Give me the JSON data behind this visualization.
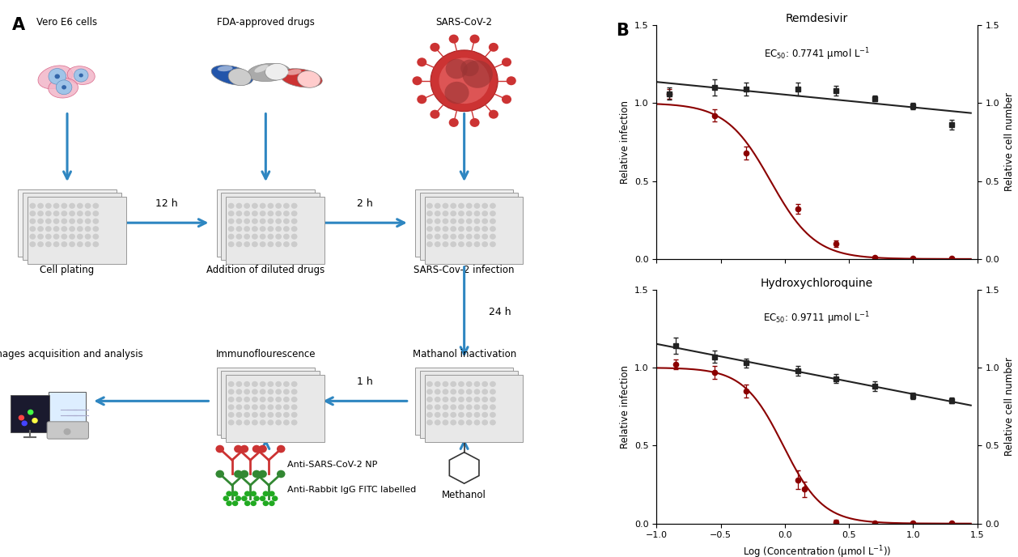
{
  "remdesivir": {
    "title": "Remdesivir",
    "ec50_text": "EC$_{50}$: 0.7741 μmol L$^{-1}$",
    "ec50_value": 0.7741,
    "infection_x": [
      -0.9,
      -0.55,
      -0.3,
      0.1,
      0.4,
      0.7,
      1.0,
      1.3
    ],
    "infection_y": [
      1.06,
      0.92,
      0.68,
      0.32,
      0.1,
      0.01,
      0.005,
      0.005
    ],
    "infection_err": [
      0.03,
      0.04,
      0.04,
      0.03,
      0.02,
      0.005,
      0.005,
      0.005
    ],
    "cell_x": [
      -0.9,
      -0.55,
      -0.3,
      0.1,
      0.4,
      0.7,
      1.0,
      1.3
    ],
    "cell_y": [
      1.06,
      1.1,
      1.09,
      1.09,
      1.08,
      1.03,
      0.98,
      0.86
    ],
    "cell_err": [
      0.04,
      0.05,
      0.04,
      0.04,
      0.03,
      0.02,
      0.02,
      0.03
    ],
    "hill": 2.5
  },
  "hydroxychloroquine": {
    "title": "Hydroxychloroquine",
    "ec50_text": "EC$_{50}$: 0.9711 μmol L$^{-1}$",
    "ec50_value": 0.9711,
    "infection_x": [
      -0.85,
      -0.55,
      -0.3,
      0.1,
      0.15,
      0.4,
      0.7,
      1.0,
      1.3
    ],
    "infection_y": [
      1.02,
      0.97,
      0.85,
      0.28,
      0.22,
      0.01,
      0.005,
      0.005,
      0.005
    ],
    "infection_err": [
      0.03,
      0.04,
      0.04,
      0.06,
      0.05,
      0.015,
      0.005,
      0.005,
      0.005
    ],
    "cell_x": [
      -0.85,
      -0.55,
      -0.3,
      0.1,
      0.4,
      0.7,
      1.0,
      1.3
    ],
    "cell_y": [
      1.14,
      1.07,
      1.03,
      0.98,
      0.93,
      0.88,
      0.82,
      0.79
    ],
    "cell_err": [
      0.05,
      0.04,
      0.03,
      0.03,
      0.03,
      0.03,
      0.02,
      0.02
    ],
    "hill": 2.8
  },
  "xlim": [
    -1.0,
    1.5
  ],
  "ylim": [
    0.0,
    1.5
  ],
  "xlabel": "Log (Concentration (μmol L$^{-1}$))",
  "ylabel_left": "Relative infection",
  "ylabel_right": "Relative cell number",
  "infection_color": "#8B0000",
  "cell_color": "#222222",
  "xticks": [
    -1.0,
    -0.5,
    0.0,
    0.5,
    1.0,
    1.5
  ],
  "yticks": [
    0.0,
    0.5,
    1.0,
    1.5
  ],
  "arrow_color": "#2E86C1",
  "background_color": "#ffffff"
}
